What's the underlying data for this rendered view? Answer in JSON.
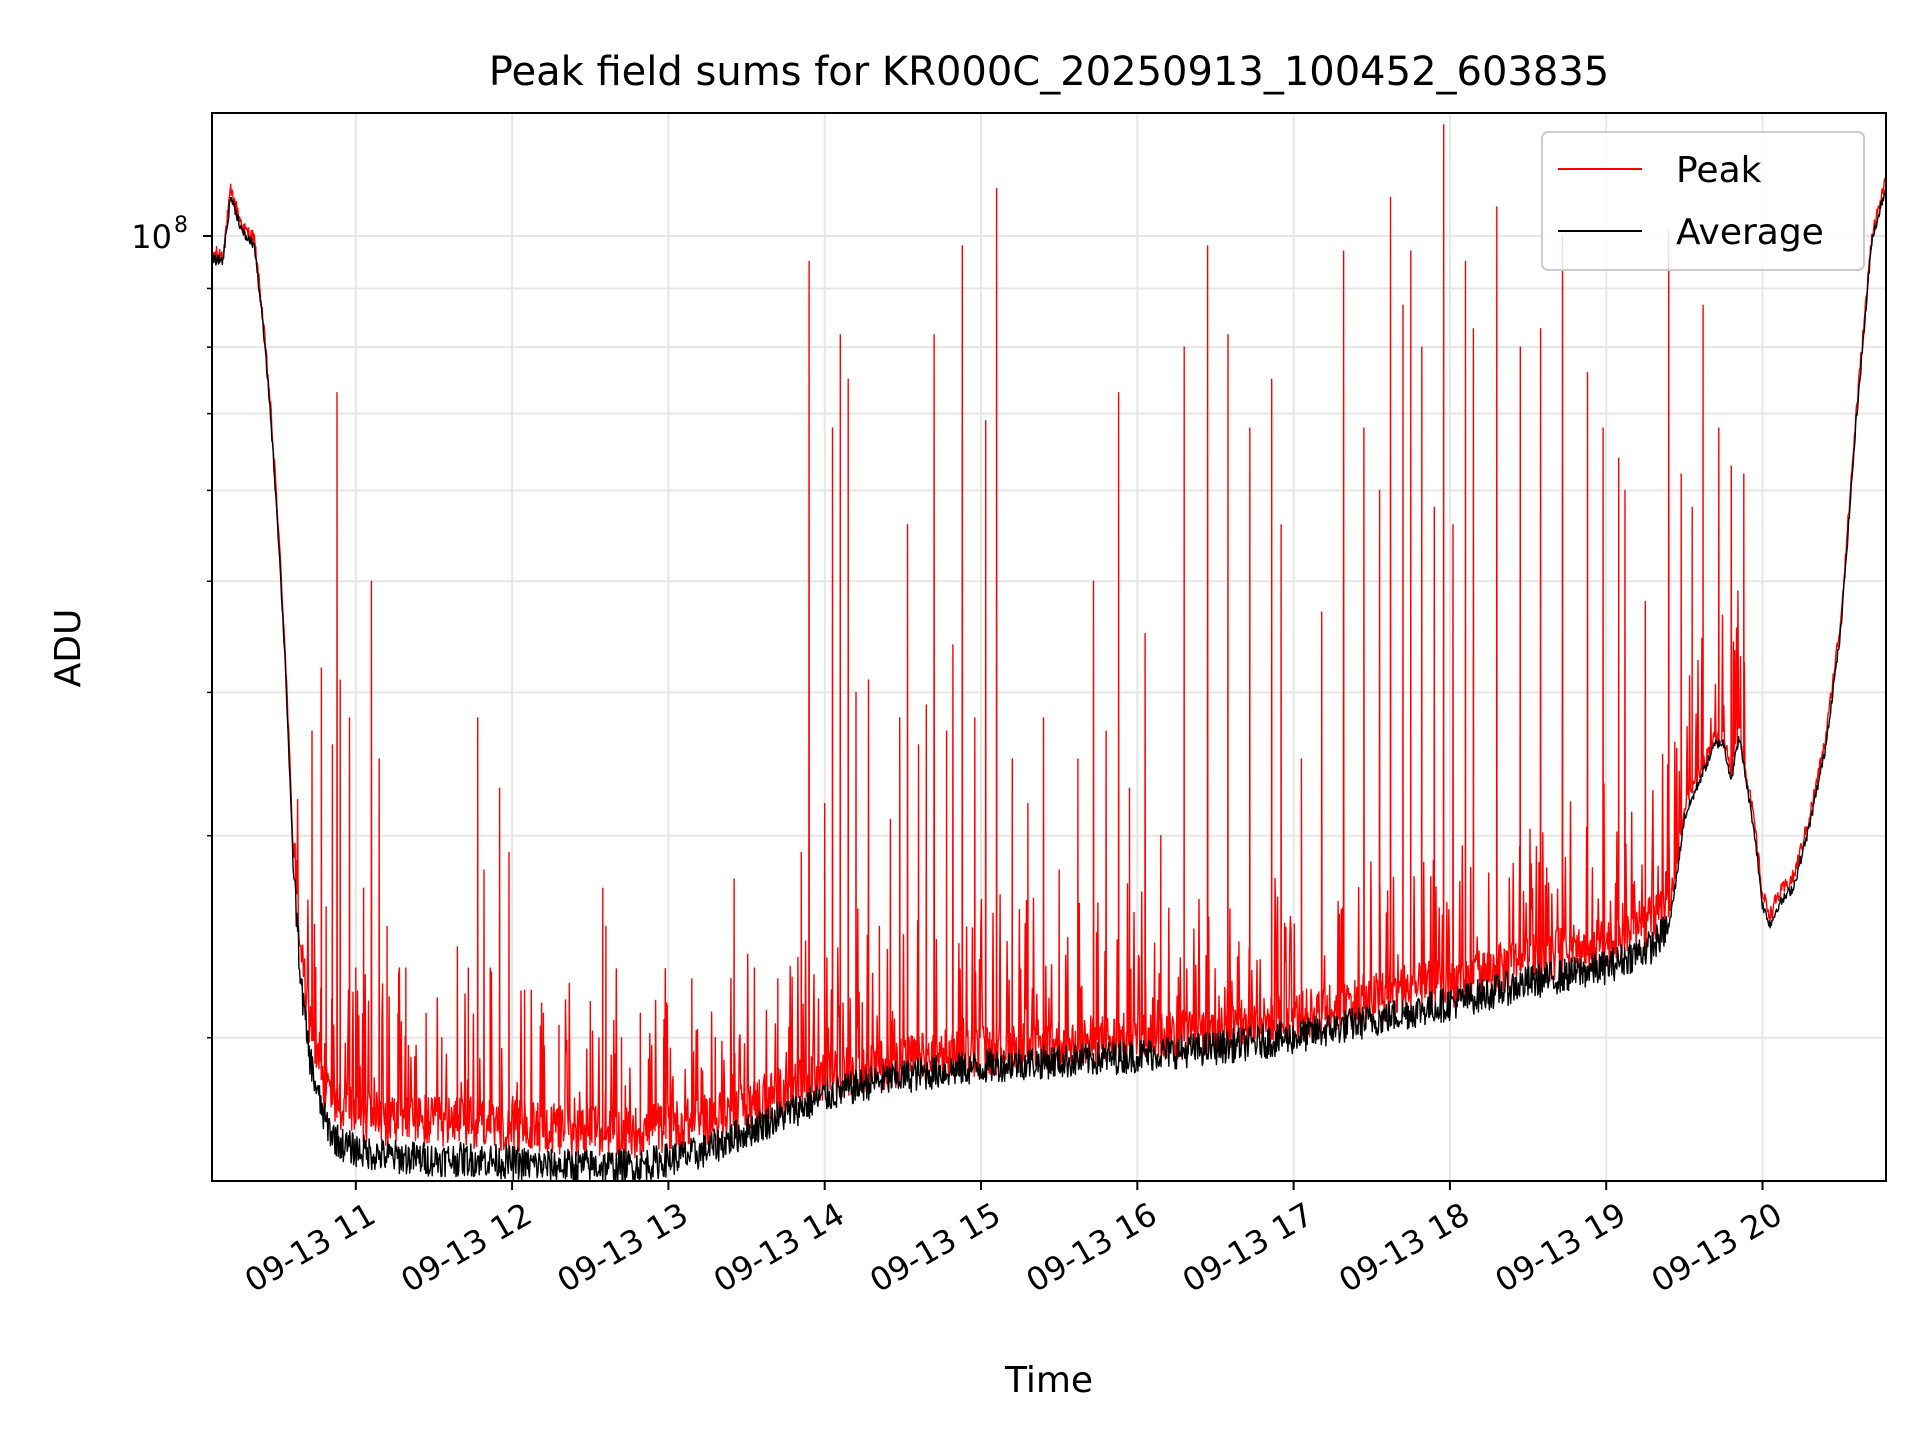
{
  "chart_data": {
    "type": "line",
    "title": "Peak field sums for KR000C_20250913_100452_603835",
    "xlabel": "Time",
    "ylabel": "ADU",
    "yscale": "log",
    "grid": true,
    "legend_position": "top-right",
    "x_tick_labels": [
      "09-13 11",
      "09-13 12",
      "09-13 13",
      "09-13 14",
      "09-13 15",
      "09-13 16",
      "09-13 17",
      "09-13 18",
      "09-13 19",
      "09-13 20"
    ],
    "x_tick_hours": [
      11,
      12,
      13,
      14,
      15,
      16,
      17,
      18,
      19,
      20
    ],
    "xlim_hours": [
      10.08,
      20.79
    ],
    "ylim": [
      15000000,
      128000000
    ],
    "y_major_ticks": [
      {
        "value": 100000000,
        "base": "10",
        "exp": "8"
      }
    ],
    "y_minor_ticks": [
      20000000,
      30000000,
      40000000,
      50000000,
      60000000,
      70000000,
      80000000,
      90000000
    ],
    "series": [
      {
        "name": "Peak",
        "color": "#ff0000",
        "baseline_hours": [
          10.08,
          10.15,
          10.2,
          10.28,
          10.35,
          10.4,
          10.45,
          10.5,
          10.55,
          10.6,
          10.65,
          10.7,
          10.75,
          10.8,
          10.85,
          10.9,
          11.0,
          11.2,
          11.5,
          11.8,
          12.0,
          12.2,
          12.5,
          12.8,
          13.0,
          13.2,
          13.5,
          13.8,
          14.0,
          14.3,
          14.6,
          14.9,
          15.2,
          15.6,
          16.0,
          16.5,
          17.0,
          17.5,
          18.0,
          18.5,
          19.0,
          19.3,
          19.4,
          19.45,
          19.5,
          19.6,
          19.7,
          19.75,
          19.8,
          19.85,
          19.95,
          20.0,
          20.05,
          20.1,
          20.2,
          20.3,
          20.4,
          20.5,
          20.6,
          20.7,
          20.79
        ],
        "baseline_values": [
          96000000,
          96000000,
          109000000,
          101000000,
          99000000,
          86000000,
          72000000,
          57000000,
          43000000,
          29000000,
          23500000,
          20500000,
          19000000,
          18000000,
          17500000,
          17200000,
          16900000,
          16700000,
          16600000,
          16600000,
          16500000,
          16400000,
          16300000,
          16300000,
          16500000,
          16600000,
          17200000,
          17800000,
          18200000,
          18600000,
          18900000,
          19100000,
          19300000,
          19500000,
          19700000,
          20000000,
          20500000,
          21300000,
          22000000,
          23000000,
          23800000,
          24800000,
          25500000,
          28000000,
          31500000,
          34000000,
          36500000,
          36500000,
          34000000,
          37000000,
          30500000,
          26500000,
          25500000,
          26500000,
          27500000,
          31000000,
          36000000,
          46000000,
          70000000,
          100000000,
          111000000
        ],
        "spikes": [
          [
            10.72,
            37000000
          ],
          [
            10.78,
            42000000
          ],
          [
            10.81,
            26000000
          ],
          [
            10.85,
            36000000
          ],
          [
            10.88,
            73000000
          ],
          [
            10.9,
            41000000
          ],
          [
            10.96,
            38000000
          ],
          [
            11.0,
            23000000
          ],
          [
            11.05,
            27000000
          ],
          [
            11.1,
            50000000
          ],
          [
            11.15,
            35000000
          ],
          [
            11.2,
            25000000
          ],
          [
            11.27,
            21000000
          ],
          [
            11.32,
            23000000
          ],
          [
            11.45,
            21000000
          ],
          [
            11.55,
            20000000
          ],
          [
            11.65,
            24000000
          ],
          [
            11.72,
            23000000
          ],
          [
            11.78,
            38000000
          ],
          [
            11.82,
            28000000
          ],
          [
            11.86,
            23000000
          ],
          [
            11.92,
            33000000
          ],
          [
            11.98,
            29000000
          ],
          [
            12.08,
            22000000
          ],
          [
            12.2,
            21000000
          ],
          [
            12.3,
            20500000
          ],
          [
            12.5,
            21500000
          ],
          [
            12.58,
            27000000
          ],
          [
            12.6,
            25000000
          ],
          [
            12.7,
            20000000
          ],
          [
            12.82,
            21000000
          ],
          [
            12.97,
            20000000
          ],
          [
            13.15,
            22500000
          ],
          [
            13.3,
            20000000
          ],
          [
            13.42,
            27500000
          ],
          [
            13.55,
            23000000
          ],
          [
            13.7,
            22500000
          ],
          [
            13.85,
            29000000
          ],
          [
            13.9,
            95000000
          ],
          [
            14.0,
            32000000
          ],
          [
            14.05,
            68000000
          ],
          [
            14.1,
            82000000
          ],
          [
            14.15,
            75000000
          ],
          [
            14.2,
            40000000
          ],
          [
            14.28,
            41000000
          ],
          [
            14.35,
            25000000
          ],
          [
            14.42,
            31000000
          ],
          [
            14.48,
            38000000
          ],
          [
            14.53,
            56000000
          ],
          [
            14.6,
            36000000
          ],
          [
            14.65,
            39000000
          ],
          [
            14.7,
            82000000
          ],
          [
            14.78,
            37000000
          ],
          [
            14.82,
            44000000
          ],
          [
            14.88,
            98000000
          ],
          [
            14.96,
            38000000
          ],
          [
            15.03,
            69000000
          ],
          [
            15.1,
            110000000
          ],
          [
            15.2,
            35000000
          ],
          [
            15.3,
            32000000
          ],
          [
            15.4,
            38000000
          ],
          [
            15.5,
            28000000
          ],
          [
            15.62,
            35000000
          ],
          [
            15.72,
            50000000
          ],
          [
            15.8,
            37000000
          ],
          [
            15.88,
            73000000
          ],
          [
            15.95,
            33000000
          ],
          [
            16.05,
            45000000
          ],
          [
            16.15,
            30000000
          ],
          [
            16.3,
            80000000
          ],
          [
            16.45,
            98000000
          ],
          [
            16.58,
            82000000
          ],
          [
            16.72,
            68000000
          ],
          [
            16.86,
            75000000
          ],
          [
            16.92,
            56000000
          ],
          [
            17.05,
            35000000
          ],
          [
            17.18,
            47000000
          ],
          [
            17.32,
            97000000
          ],
          [
            17.45,
            68000000
          ],
          [
            17.55,
            60000000
          ],
          [
            17.62,
            108000000
          ],
          [
            17.7,
            87000000
          ],
          [
            17.75,
            97000000
          ],
          [
            17.82,
            80000000
          ],
          [
            17.9,
            58000000
          ],
          [
            17.96,
            125000000
          ],
          [
            18.02,
            56000000
          ],
          [
            18.1,
            95000000
          ],
          [
            18.15,
            83000000
          ],
          [
            18.3,
            106000000
          ],
          [
            18.45,
            80000000
          ],
          [
            18.58,
            83000000
          ],
          [
            18.72,
            100000000
          ],
          [
            18.88,
            76000000
          ],
          [
            18.98,
            68000000
          ],
          [
            19.08,
            64000000
          ],
          [
            19.12,
            60000000
          ],
          [
            19.25,
            48000000
          ],
          [
            19.4,
            101000000
          ],
          [
            19.48,
            62000000
          ],
          [
            19.55,
            58000000
          ],
          [
            19.62,
            87000000
          ],
          [
            19.72,
            68000000
          ],
          [
            19.8,
            63000000
          ],
          [
            19.88,
            62000000
          ]
        ]
      },
      {
        "name": "Average",
        "color": "#000000",
        "baseline_hours": [
          10.08,
          10.15,
          10.2,
          10.28,
          10.35,
          10.4,
          10.45,
          10.5,
          10.55,
          10.6,
          10.65,
          10.7,
          10.75,
          10.8,
          10.85,
          10.9,
          11.0,
          11.2,
          11.5,
          11.8,
          12.0,
          12.2,
          12.5,
          12.8,
          13.0,
          13.2,
          13.5,
          13.8,
          14.0,
          14.3,
          14.6,
          14.9,
          15.2,
          15.6,
          16.0,
          16.5,
          17.0,
          17.5,
          18.0,
          18.5,
          19.0,
          19.3,
          19.4,
          19.45,
          19.5,
          19.6,
          19.7,
          19.75,
          19.8,
          19.85,
          19.95,
          20.0,
          20.05,
          20.1,
          20.2,
          20.3,
          20.4,
          20.5,
          20.6,
          20.7,
          20.79
        ],
        "baseline_values": [
          95000000,
          95000000,
          108000000,
          100000000,
          98000000,
          85000000,
          71000000,
          56000000,
          42000000,
          28000000,
          22000000,
          19200000,
          17800000,
          16800000,
          16300000,
          16000000,
          15800000,
          15600000,
          15500000,
          15500000,
          15400000,
          15300000,
          15300000,
          15300000,
          15500000,
          15700000,
          16400000,
          17100000,
          17600000,
          18100000,
          18400000,
          18600000,
          18800000,
          18900000,
          19100000,
          19400000,
          19800000,
          20500000,
          21200000,
          22100000,
          22800000,
          23800000,
          24800000,
          27500000,
          31000000,
          33500000,
          36000000,
          36000000,
          33500000,
          36500000,
          30000000,
          26000000,
          25000000,
          26000000,
          27000000,
          30500000,
          35500000,
          45000000,
          69000000,
          99000000,
          110000000
        ]
      }
    ]
  }
}
